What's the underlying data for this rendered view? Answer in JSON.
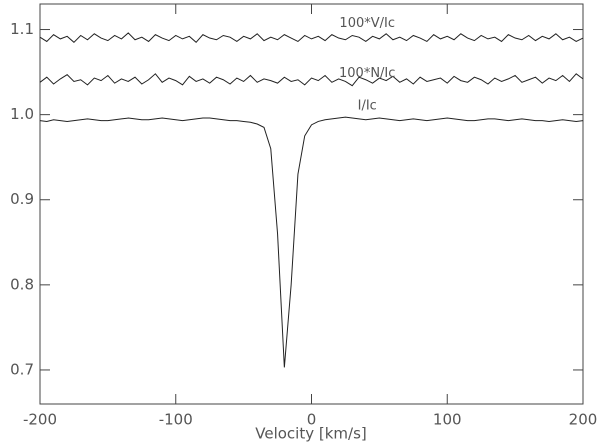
{
  "chart_data": {
    "type": "line",
    "xlabel": "Velocity [km/s]",
    "x": [
      -200,
      -195,
      -190,
      -185,
      -180,
      -175,
      -170,
      -165,
      -160,
      -155,
      -150,
      -145,
      -140,
      -135,
      -130,
      -125,
      -120,
      -115,
      -110,
      -105,
      -100,
      -95,
      -90,
      -85,
      -80,
      -75,
      -70,
      -65,
      -60,
      -55,
      -50,
      -45,
      -40,
      -35,
      -30,
      -25,
      -20,
      -15,
      -10,
      -5,
      0,
      5,
      10,
      15,
      20,
      25,
      30,
      35,
      40,
      45,
      50,
      55,
      60,
      65,
      70,
      75,
      80,
      85,
      90,
      95,
      100,
      105,
      110,
      115,
      120,
      125,
      130,
      135,
      140,
      145,
      150,
      155,
      160,
      165,
      170,
      175,
      180,
      185,
      190,
      195,
      200
    ],
    "series": [
      {
        "name": "I/Ic",
        "color": "#222222",
        "values": [
          0.993,
          0.992,
          0.994,
          0.993,
          0.992,
          0.993,
          0.994,
          0.995,
          0.994,
          0.993,
          0.993,
          0.994,
          0.995,
          0.996,
          0.995,
          0.994,
          0.994,
          0.995,
          0.996,
          0.995,
          0.994,
          0.993,
          0.994,
          0.995,
          0.996,
          0.996,
          0.995,
          0.994,
          0.993,
          0.993,
          0.992,
          0.991,
          0.989,
          0.985,
          0.96,
          0.86,
          0.703,
          0.8,
          0.93,
          0.975,
          0.988,
          0.992,
          0.994,
          0.995,
          0.996,
          0.997,
          0.996,
          0.995,
          0.994,
          0.995,
          0.996,
          0.995,
          0.994,
          0.993,
          0.994,
          0.995,
          0.994,
          0.993,
          0.994,
          0.995,
          0.996,
          0.995,
          0.994,
          0.993,
          0.993,
          0.994,
          0.995,
          0.995,
          0.994,
          0.993,
          0.994,
          0.995,
          0.994,
          0.993,
          0.993,
          0.992,
          0.993,
          0.994,
          0.993,
          0.992,
          0.993
        ]
      },
      {
        "name": "100*N/Ic",
        "color": "#222222",
        "values": [
          1.038,
          1.044,
          1.036,
          1.042,
          1.047,
          1.039,
          1.041,
          1.035,
          1.043,
          1.04,
          1.046,
          1.037,
          1.042,
          1.039,
          1.044,
          1.036,
          1.041,
          1.048,
          1.038,
          1.043,
          1.04,
          1.035,
          1.045,
          1.039,
          1.042,
          1.037,
          1.044,
          1.041,
          1.036,
          1.043,
          1.039,
          1.046,
          1.038,
          1.042,
          1.04,
          1.037,
          1.044,
          1.039,
          1.041,
          1.035,
          1.043,
          1.04,
          1.046,
          1.038,
          1.042,
          1.039,
          1.034,
          1.044,
          1.041,
          1.037,
          1.043,
          1.04,
          1.045,
          1.038,
          1.042,
          1.036,
          1.044,
          1.039,
          1.041,
          1.043,
          1.037,
          1.045,
          1.04,
          1.038,
          1.044,
          1.041,
          1.036,
          1.043,
          1.039,
          1.042,
          1.046,
          1.038,
          1.041,
          1.044,
          1.037,
          1.043,
          1.04,
          1.046,
          1.039,
          1.048,
          1.042
        ]
      },
      {
        "name": "100*V/Ic",
        "color": "#222222",
        "values": [
          1.091,
          1.086,
          1.094,
          1.089,
          1.092,
          1.085,
          1.093,
          1.088,
          1.095,
          1.09,
          1.087,
          1.093,
          1.089,
          1.096,
          1.088,
          1.091,
          1.086,
          1.094,
          1.09,
          1.087,
          1.093,
          1.089,
          1.092,
          1.085,
          1.094,
          1.09,
          1.088,
          1.093,
          1.091,
          1.086,
          1.092,
          1.089,
          1.095,
          1.087,
          1.091,
          1.088,
          1.094,
          1.09,
          1.086,
          1.093,
          1.089,
          1.092,
          1.087,
          1.094,
          1.09,
          1.088,
          1.093,
          1.091,
          1.086,
          1.092,
          1.089,
          1.095,
          1.088,
          1.091,
          1.087,
          1.093,
          1.09,
          1.086,
          1.094,
          1.089,
          1.092,
          1.088,
          1.095,
          1.09,
          1.087,
          1.093,
          1.089,
          1.091,
          1.086,
          1.094,
          1.09,
          1.088,
          1.093,
          1.087,
          1.092,
          1.089,
          1.095,
          1.088,
          1.091,
          1.086,
          1.09
        ]
      }
    ],
    "xlim": [
      -200,
      200
    ],
    "xticks": [
      -200,
      -100,
      0,
      100,
      200
    ],
    "ylim": [
      0.66,
      1.13
    ],
    "yticks": [
      0.7,
      0.8,
      0.9,
      {
        "value": 1,
        "label": "1.0"
      },
      1.1
    ]
  }
}
